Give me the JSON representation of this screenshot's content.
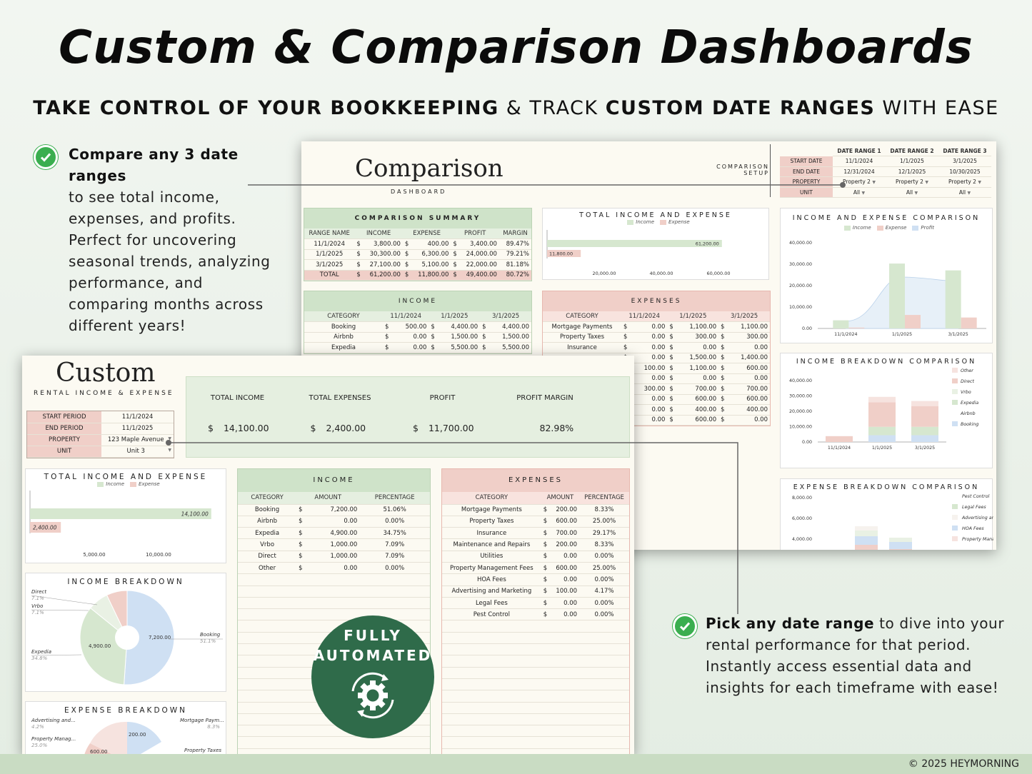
{
  "header": {
    "title": "Custom & Comparison Dashboards",
    "subtitle_b1": "TAKE CONTROL OF YOUR BOOKKEEPING",
    "subtitle_n1": " & TRACK ",
    "subtitle_b2": "CUSTOM DATE RANGES",
    "subtitle_n2": " WITH EASE"
  },
  "bullets": [
    {
      "bold": "Compare any 3 date ranges",
      "lines": [
        "to see total income,",
        "expenses, and profits.",
        "Perfect for uncovering",
        "seasonal trends, analyzing",
        "performance, and",
        "comparing months across",
        "different years!"
      ]
    },
    {
      "bold": "Pick any date range",
      "rest": " to dive into your",
      "lines": [
        "rental performance for that period.",
        "Instantly access essential data and",
        "insights for each timeframe with ease!"
      ]
    }
  ],
  "badge": {
    "line1": "FULLY",
    "line2": "AUTOMATED",
    "icon": "gear-cycle-icon"
  },
  "footer": {
    "copyright": "© 2025 HEYMORNING"
  },
  "comparison": {
    "title": "Comparison",
    "subtitle": "DASHBOARD",
    "setup_label1": "COMPARISON",
    "setup_label2": "SETUP",
    "setup": {
      "headers": [
        "DATE RANGE 1",
        "DATE RANGE 2",
        "DATE RANGE 3"
      ],
      "rows": [
        {
          "label": "START DATE",
          "values": [
            "11/1/2024",
            "1/1/2025",
            "3/1/2025"
          ]
        },
        {
          "label": "END DATE",
          "values": [
            "12/31/2024",
            "12/1/2025",
            "10/30/2025"
          ]
        },
        {
          "label": "PROPERTY",
          "values": [
            "Property 2",
            "Property 2",
            "Property 2"
          ]
        },
        {
          "label": "UNIT",
          "values": [
            "All",
            "All",
            "All"
          ]
        }
      ]
    },
    "summary": {
      "title": "COMPARISON SUMMARY",
      "headers": [
        "RANGE NAME",
        "INCOME",
        "EXPENSE",
        "PROFIT",
        "MARGIN"
      ],
      "rows": [
        [
          "11/1/2024",
          "3,800.00",
          "400.00",
          "3,400.00",
          "89.47%"
        ],
        [
          "1/1/2025",
          "30,300.00",
          "6,300.00",
          "24,000.00",
          "79.21%"
        ],
        [
          "3/1/2025",
          "27,100.00",
          "5,100.00",
          "22,000.00",
          "81.18%"
        ]
      ],
      "total": [
        "TOTAL",
        "61,200.00",
        "11,800.00",
        "49,400.00",
        "80.72%"
      ]
    },
    "income": {
      "title": "INCOME",
      "headers": [
        "CATEGORY",
        "11/1/2024",
        "1/1/2025",
        "3/1/2025"
      ],
      "rows": [
        [
          "Booking",
          "500.00",
          "4,400.00",
          "4,400.00"
        ],
        [
          "Airbnb",
          "0.00",
          "1,500.00",
          "1,500.00"
        ],
        [
          "Expedia",
          "0.00",
          "5,500.00",
          "5,500.00"
        ]
      ]
    },
    "expenses": {
      "title": "EXPENSES",
      "headers": [
        "CATEGORY",
        "11/1/2024",
        "1/1/2025",
        "3/1/2025"
      ],
      "rows": [
        [
          "Mortgage Payments",
          "0.00",
          "1,100.00",
          "1,100.00"
        ],
        [
          "Property Taxes",
          "0.00",
          "300.00",
          "300.00"
        ],
        [
          "Insurance",
          "0.00",
          "0.00",
          "0.00"
        ],
        [
          "",
          "0.00",
          "1,500.00",
          "1,400.00"
        ],
        [
          "",
          "100.00",
          "1,100.00",
          "600.00"
        ],
        [
          "",
          "0.00",
          "0.00",
          "0.00"
        ],
        [
          "",
          "300.00",
          "700.00",
          "700.00"
        ],
        [
          "",
          "0.00",
          "600.00",
          "600.00"
        ],
        [
          "",
          "0.00",
          "400.00",
          "400.00"
        ],
        [
          "",
          "0.00",
          "600.00",
          "0.00"
        ]
      ]
    },
    "tie_chart": {
      "title": "TOTAL INCOME AND EXPENSE",
      "legend": [
        "Income",
        "Expense"
      ],
      "income": 61200,
      "expense": 11800,
      "income_label": "61,200.00",
      "expense_label": "11,800.00",
      "ticks": [
        "20,000.00",
        "40,000.00",
        "60,000.00"
      ],
      "max": 70000
    },
    "iec_chart": {
      "title": "INCOME AND EXPENSE COMPARISON",
      "legend": [
        "Income",
        "Expense",
        "Profit"
      ],
      "categories": [
        "11/1/2024",
        "1/1/2025",
        "3/1/2025"
      ],
      "income": [
        3800,
        30300,
        27100
      ],
      "expense": [
        400,
        6300,
        5100
      ],
      "profit": [
        3400,
        24000,
        22000
      ],
      "yticks": [
        "40,000.00",
        "30,000.00",
        "20,000.00",
        "10,000.00",
        "0.00"
      ],
      "max": 40000
    },
    "ibc_chart": {
      "title": "INCOME BREAKDOWN COMPARISON",
      "legend": [
        "Other",
        "Direct",
        "Vrbo",
        "Expedia",
        "Airbnb",
        "Booking"
      ],
      "categories": [
        "11/1/2024",
        "1/1/2025",
        "3/1/2025"
      ],
      "yticks": [
        "40,000.00",
        "30,000.00",
        "20,000.00",
        "10,000.00",
        "0.00"
      ],
      "max": 40000,
      "stacks": [
        [
          {
            "c": "#f0cfc8",
            "v": 3800
          }
        ],
        [
          {
            "c": "#cfe0f3",
            "v": 4400
          },
          {
            "c": "#d6e7cf",
            "v": 5500
          },
          {
            "c": "#f0cfc8",
            "v": 16000
          },
          {
            "c": "#f6e3df",
            "v": 3500
          }
        ],
        [
          {
            "c": "#cfe0f3",
            "v": 4400
          },
          {
            "c": "#d6e7cf",
            "v": 5500
          },
          {
            "c": "#f0cfc8",
            "v": 13500
          },
          {
            "c": "#f6e3df",
            "v": 3300
          }
        ]
      ]
    },
    "ebc_chart": {
      "title": "EXPENSE BREAKDOWN COMPARISON",
      "legend": [
        "Pest Control",
        "Legal Fees",
        "Advertising and M...",
        "HOA Fees",
        "Property Manage..."
      ],
      "yticks": [
        "8,000.00",
        "6,000.00",
        "4,000.00"
      ]
    }
  },
  "custom": {
    "title": "Custom",
    "subtitle": "RENTAL INCOME & EXPENSE",
    "setup": [
      {
        "label": "START PERIOD",
        "value": "11/1/2024"
      },
      {
        "label": "END PERIOD",
        "value": "11/1/2025"
      },
      {
        "label": "PROPERTY",
        "value": "123 Maple Avenue"
      },
      {
        "label": "UNIT",
        "value": "Unit 3"
      }
    ],
    "kpis": [
      {
        "label": "TOTAL INCOME",
        "cur": "$",
        "value": "14,100.00"
      },
      {
        "label": "TOTAL EXPENSES",
        "cur": "$",
        "value": "2,400.00"
      },
      {
        "label": "PROFIT",
        "cur": "$",
        "value": "11,700.00"
      },
      {
        "label": "PROFIT MARGIN",
        "cur": "",
        "value": "82.98%"
      }
    ],
    "tie_chart": {
      "title": "TOTAL INCOME AND EXPENSE",
      "legend": [
        "Income",
        "Expense"
      ],
      "income": 14100,
      "expense": 2400,
      "income_label": "14,100.00",
      "expense_label": "2,400.00",
      "ticks": [
        "5,000.00",
        "10,000.00"
      ],
      "max": 15000
    },
    "income": {
      "title": "INCOME",
      "headers": [
        "CATEGORY",
        "AMOUNT",
        "PERCENTAGE"
      ],
      "rows": [
        [
          "Booking",
          "7,200.00",
          "51.06%"
        ],
        [
          "Airbnb",
          "0.00",
          "0.00%"
        ],
        [
          "Expedia",
          "4,900.00",
          "34.75%"
        ],
        [
          "Vrbo",
          "1,000.00",
          "7.09%"
        ],
        [
          "Direct",
          "1,000.00",
          "7.09%"
        ],
        [
          "Other",
          "0.00",
          "0.00%"
        ]
      ]
    },
    "expenses": {
      "title": "EXPENSES",
      "headers": [
        "CATEGORY",
        "AMOUNT",
        "PERCENTAGE"
      ],
      "rows": [
        [
          "Mortgage Payments",
          "200.00",
          "8.33%"
        ],
        [
          "Property Taxes",
          "600.00",
          "25.00%"
        ],
        [
          "Insurance",
          "700.00",
          "29.17%"
        ],
        [
          "Maintenance and Repairs",
          "200.00",
          "8.33%"
        ],
        [
          "Utilities",
          "0.00",
          "0.00%"
        ],
        [
          "Property Management Fees",
          "600.00",
          "25.00%"
        ],
        [
          "HOA Fees",
          "0.00",
          "0.00%"
        ],
        [
          "Advertising and Marketing",
          "100.00",
          "4.17%"
        ],
        [
          "Legal Fees",
          "0.00",
          "0.00%"
        ],
        [
          "Pest Control",
          "0.00",
          "0.00%"
        ]
      ]
    },
    "income_breakdown": {
      "title": "INCOME BREAKDOWN",
      "slices": [
        {
          "name": "Booking",
          "value": 7200,
          "pct": "51.1%",
          "color": "#cfe0f3"
        },
        {
          "name": "Expedia",
          "value": 4900,
          "pct": "34.8%",
          "color": "#d6e7cf"
        },
        {
          "name": "Vrbo",
          "value": 1000,
          "pct": "7.1%",
          "color": "#e9f1e4"
        },
        {
          "name": "Direct",
          "value": 1000,
          "pct": "7.1%",
          "color": "#f0cfc8"
        }
      ],
      "label_booking": "7,200.00",
      "label_expedia": "4,900.00"
    },
    "expense_breakdown": {
      "title": "EXPENSE BREAKDOWN",
      "labels": [
        {
          "name": "Advertising and...",
          "pct": "4.2%"
        },
        {
          "name": "Mortgage Paym...",
          "pct": "8.3%"
        },
        {
          "name": "Property Manag...",
          "pct": "25.0%"
        },
        {
          "name": "Property Taxes",
          "pct": ""
        }
      ],
      "val1": "200.00",
      "val2": "600.00"
    }
  }
}
